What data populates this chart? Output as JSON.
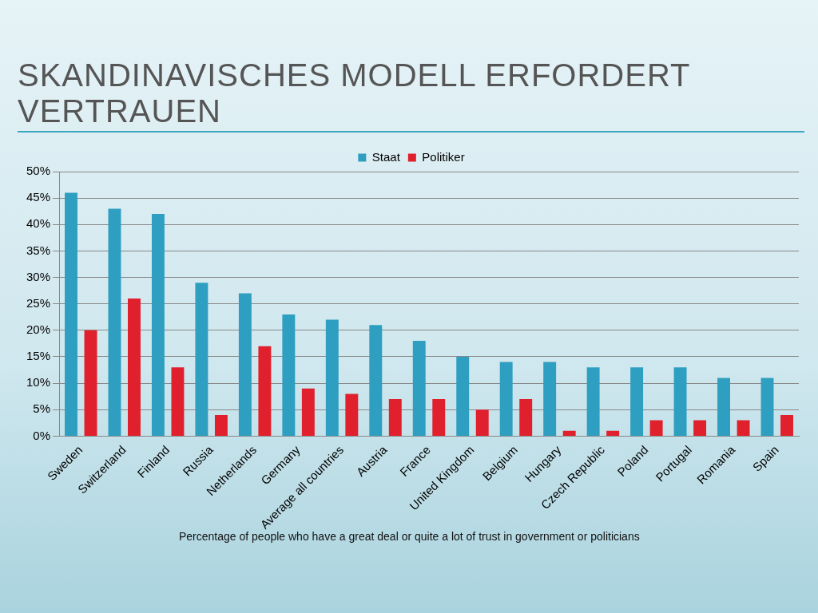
{
  "chart_data": {
    "type": "bar",
    "title": "SKANDINAVISCHES MODELL ERFORDERT VERTRAUEN",
    "categories": [
      "Sweden",
      "Switzerland",
      "Finland",
      "Russia",
      "Netherlands",
      "Germany",
      "Average all countries",
      "Austria",
      "France",
      "United Kingdom",
      "Belgium",
      "Hungary",
      "Czech Republic",
      "Poland",
      "Portugal",
      "Romania",
      "Spain"
    ],
    "series": [
      {
        "name": "Staat",
        "color": "#2e9fc0",
        "values": [
          46,
          43,
          42,
          29,
          27,
          23,
          22,
          21,
          18,
          15,
          14,
          14,
          13,
          13,
          13,
          11,
          11
        ]
      },
      {
        "name": "Politiker",
        "color": "#e0202c",
        "values": [
          20,
          26,
          13,
          4,
          17,
          9,
          8,
          7,
          7,
          5,
          7,
          1,
          1,
          3,
          3,
          3,
          4
        ]
      }
    ],
    "ylim": [
      0,
      50
    ],
    "yticks": [
      {
        "value": 0,
        "label": "0%"
      },
      {
        "value": 5,
        "label": "5%"
      },
      {
        "value": 10,
        "label": "10%"
      },
      {
        "value": 15,
        "label": "15%"
      },
      {
        "value": 20,
        "label": "20%"
      },
      {
        "value": 25,
        "label": "25%"
      },
      {
        "value": 30,
        "label": "30%"
      },
      {
        "value": 35,
        "label": "35%"
      },
      {
        "value": 40,
        "label": "40%"
      },
      {
        "value": 45,
        "label": "45%"
      },
      {
        "value": 50,
        "label": "50%"
      }
    ],
    "grid": "y",
    "legend": "top",
    "annotations": [
      "Percentage of people who have  a great deal or quite a lot of trust in government or politicians"
    ]
  }
}
